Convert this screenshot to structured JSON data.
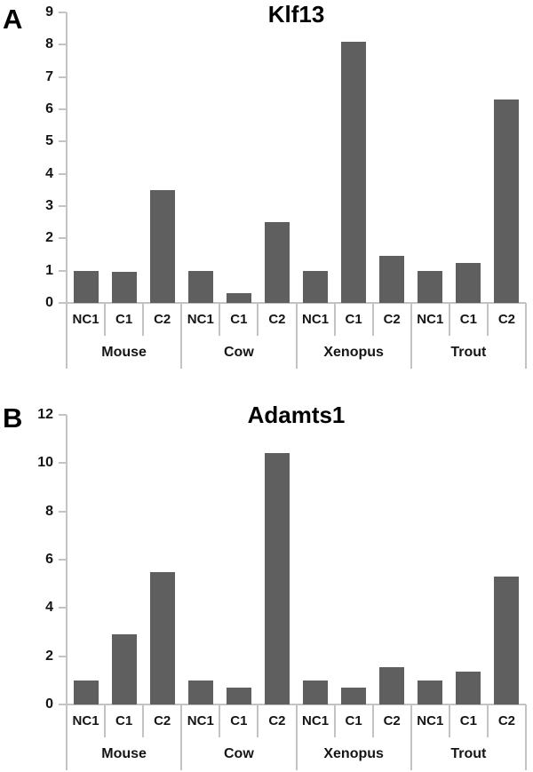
{
  "figure": {
    "panels": [
      {
        "label": "A",
        "title": "Klf13"
      },
      {
        "label": "B",
        "title": "Adamts1"
      }
    ]
  },
  "chart_data": [
    {
      "type": "bar",
      "panel": "A",
      "title": "Klf13",
      "xlabel": "",
      "ylabel": "",
      "ylim": [
        0,
        9
      ],
      "ytick_step": 1,
      "ytick_labels": [
        "0",
        "1",
        "2",
        "3",
        "4",
        "5",
        "6",
        "7",
        "8",
        "9"
      ],
      "grid": false,
      "legend": "none",
      "bar_color": "#5f5f5f",
      "axis_color": "#c3c3c3",
      "conditions": [
        "NC1",
        "C1",
        "C2"
      ],
      "groups": [
        {
          "label": "Mouse",
          "values": [
            1.0,
            0.95,
            3.5
          ]
        },
        {
          "label": "Cow",
          "values": [
            1.0,
            0.3,
            2.5
          ]
        },
        {
          "label": "Xenopus",
          "values": [
            1.0,
            8.1,
            1.45
          ]
        },
        {
          "label": "Trout",
          "values": [
            1.0,
            1.25,
            6.3
          ]
        }
      ]
    },
    {
      "type": "bar",
      "panel": "B",
      "title": "Adamts1",
      "xlabel": "",
      "ylabel": "",
      "ylim": [
        0,
        12
      ],
      "ytick_step": 2,
      "ytick_labels": [
        "0",
        "2",
        "4",
        "6",
        "8",
        "10",
        "12"
      ],
      "grid": false,
      "legend": "none",
      "bar_color": "#5f5f5f",
      "axis_color": "#c3c3c3",
      "conditions": [
        "NC1",
        "C1",
        "C2"
      ],
      "groups": [
        {
          "label": "Mouse",
          "values": [
            1.0,
            2.9,
            5.5
          ]
        },
        {
          "label": "Cow",
          "values": [
            1.0,
            0.7,
            10.4
          ]
        },
        {
          "label": "Xenopus",
          "values": [
            1.0,
            0.7,
            1.55
          ]
        },
        {
          "label": "Trout",
          "values": [
            1.0,
            1.35,
            5.3
          ]
        }
      ]
    }
  ]
}
